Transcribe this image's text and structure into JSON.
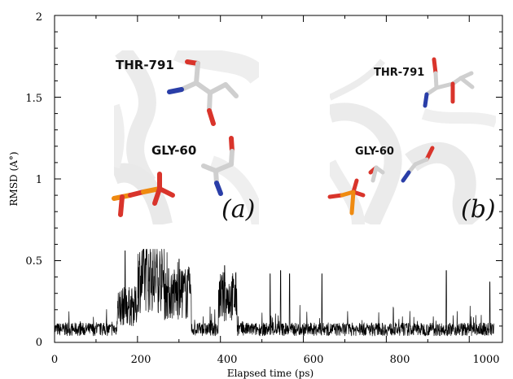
{
  "chart_data": {
    "type": "line",
    "title": "",
    "xlabel": "Elapsed time (ps)",
    "ylabel": "RMSD (A°)",
    "xlim": [
      0,
      1080
    ],
    "ylim": [
      0,
      2
    ],
    "x_ticks": [
      "0",
      "200",
      "400",
      "600",
      "800",
      "1000"
    ],
    "y_ticks": [
      "0",
      "0.5",
      "1",
      "1.5",
      "2"
    ],
    "x_tick_values": [
      0,
      200,
      400,
      600,
      800,
      1000
    ],
    "y_tick_values": [
      0,
      0.5,
      1,
      1.5,
      2
    ],
    "grid": false,
    "series": [
      {
        "color": "#000000",
        "baseline": 0.07,
        "noise": 0.04,
        "segments": [
          {
            "x_start": 0,
            "x_end": 150,
            "level": 0.08
          },
          {
            "x_start": 150,
            "x_end": 200,
            "level": 0.22
          },
          {
            "x_start": 200,
            "x_end": 265,
            "level": 0.4
          },
          {
            "x_start": 265,
            "x_end": 330,
            "level": 0.3
          },
          {
            "x_start": 330,
            "x_end": 395,
            "level": 0.08
          },
          {
            "x_start": 395,
            "x_end": 440,
            "level": 0.28
          },
          {
            "x_start": 440,
            "x_end": 1060,
            "level": 0.08
          }
        ],
        "spikes": [
          {
            "x": 170,
            "y": 0.56
          },
          {
            "x": 232,
            "y": 0.55
          },
          {
            "x": 300,
            "y": 0.51
          },
          {
            "x": 410,
            "y": 0.47
          },
          {
            "x": 520,
            "y": 0.42
          },
          {
            "x": 545,
            "y": 0.44
          },
          {
            "x": 567,
            "y": 0.42
          },
          {
            "x": 645,
            "y": 0.42
          },
          {
            "x": 945,
            "y": 0.44
          },
          {
            "x": 1050,
            "y": 0.37
          }
        ]
      }
    ]
  },
  "insets": {
    "a": {
      "label_top": "THR-791",
      "label_mid": "GLY-60",
      "tag": "(a)"
    },
    "b": {
      "label_top": "THR-791",
      "label_mid": "GLY-60",
      "tag": "(b)"
    }
  },
  "colors": {
    "carbon": "#d0d0d0",
    "oxygen": "#d9342b",
    "nitrogen": "#2a3ea8",
    "phosphorus": "#ef8a10",
    "ribbon": "#ececec"
  }
}
